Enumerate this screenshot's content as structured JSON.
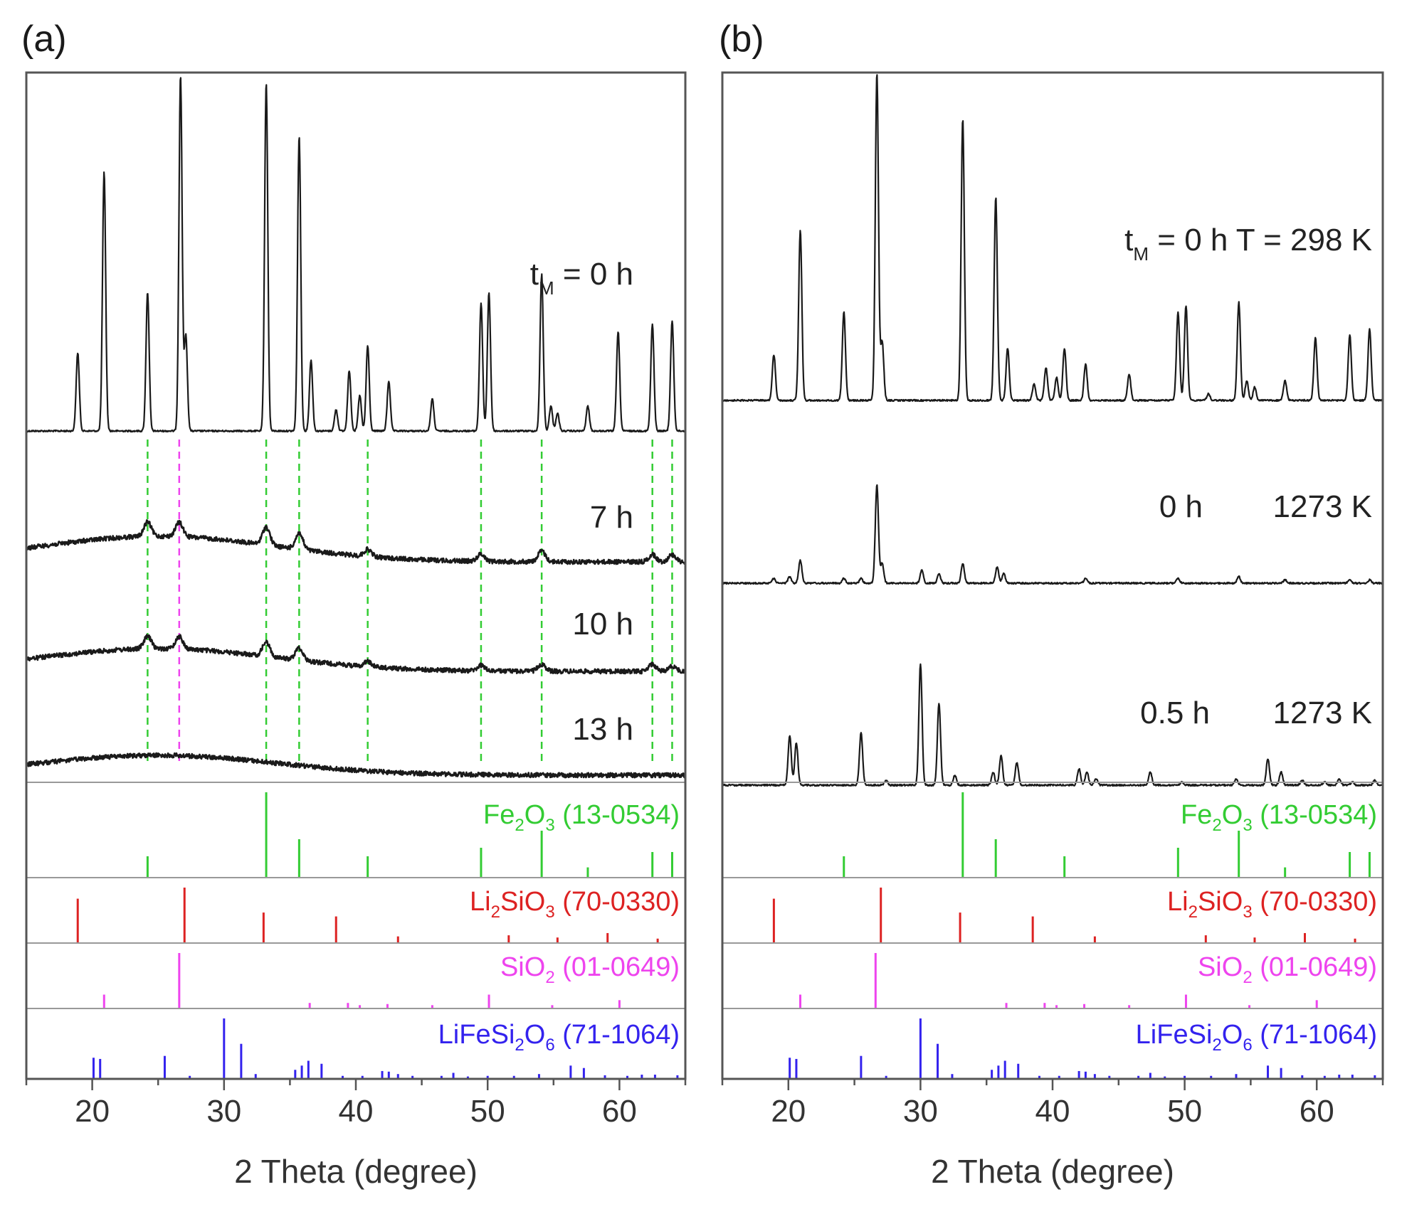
{
  "figure": {
    "panel_letters": [
      "(a)",
      "(b)"
    ],
    "xlabel": "2 Theta (degree)",
    "colors": {
      "pattern": "#1a1a1a",
      "Fe2O3": "#33cc33",
      "Li2SiO3": "#dd2222",
      "SiO2": "#ee44ee",
      "LiFeSi2O6": "#3322ee",
      "frame": "#555555",
      "separator": "#999999"
    }
  },
  "chart_data": [
    {
      "type": "line",
      "panel": "(a)",
      "xlabel": "2 Theta (degree)",
      "xlim": [
        15,
        65
      ],
      "xticks": [
        20,
        30,
        40,
        50,
        60
      ],
      "ylabel": "",
      "series": [
        {
          "name": "",
          "label_text": "t",
          "label_sub": "M",
          "label_rest": " = 0 h",
          "kind": "crystalline",
          "peaks": [
            {
              "x": 18.9,
              "h": 0.22
            },
            {
              "x": 20.9,
              "h": 0.73
            },
            {
              "x": 24.2,
              "h": 0.39
            },
            {
              "x": 26.7,
              "h": 1.0
            },
            {
              "x": 27.1,
              "h": 0.27
            },
            {
              "x": 33.2,
              "h": 0.98
            },
            {
              "x": 35.7,
              "h": 0.83
            },
            {
              "x": 36.6,
              "h": 0.2
            },
            {
              "x": 38.5,
              "h": 0.06
            },
            {
              "x": 39.5,
              "h": 0.17
            },
            {
              "x": 40.3,
              "h": 0.1
            },
            {
              "x": 40.9,
              "h": 0.24
            },
            {
              "x": 42.5,
              "h": 0.14
            },
            {
              "x": 45.8,
              "h": 0.09
            },
            {
              "x": 49.5,
              "h": 0.36
            },
            {
              "x": 50.1,
              "h": 0.39
            },
            {
              "x": 54.1,
              "h": 0.44
            },
            {
              "x": 54.8,
              "h": 0.07
            },
            {
              "x": 55.3,
              "h": 0.05
            },
            {
              "x": 57.6,
              "h": 0.07
            },
            {
              "x": 59.9,
              "h": 0.28
            },
            {
              "x": 62.5,
              "h": 0.3
            },
            {
              "x": 64.0,
              "h": 0.31
            }
          ]
        },
        {
          "name": "",
          "label_text": "7 h",
          "kind": "amorphous",
          "peaks": [
            {
              "x": 24.2,
              "h": 0.04
            },
            {
              "x": 26.6,
              "h": 0.04
            },
            {
              "x": 33.2,
              "h": 0.05
            },
            {
              "x": 35.7,
              "h": 0.045
            },
            {
              "x": 40.9,
              "h": 0.02
            },
            {
              "x": 49.5,
              "h": 0.02
            },
            {
              "x": 54.1,
              "h": 0.03
            },
            {
              "x": 62.5,
              "h": 0.02
            },
            {
              "x": 64.0,
              "h": 0.02
            }
          ]
        },
        {
          "name": "",
          "label_text": "10 h",
          "kind": "amorphous",
          "peaks": [
            {
              "x": 24.2,
              "h": 0.035
            },
            {
              "x": 26.6,
              "h": 0.035
            },
            {
              "x": 33.2,
              "h": 0.04
            },
            {
              "x": 35.7,
              "h": 0.035
            },
            {
              "x": 40.9,
              "h": 0.015
            },
            {
              "x": 49.5,
              "h": 0.015
            },
            {
              "x": 54.1,
              "h": 0.02
            },
            {
              "x": 62.5,
              "h": 0.02
            },
            {
              "x": 64.0,
              "h": 0.015
            }
          ]
        },
        {
          "name": "",
          "label_text": "13 h",
          "kind": "amorphous",
          "peaks": []
        }
      ],
      "guide_lines": {
        "Fe2O3": [
          24.2,
          33.2,
          35.7,
          40.9,
          49.5,
          54.1,
          62.5,
          64.0
        ],
        "SiO2": [
          26.6
        ]
      }
    },
    {
      "type": "line",
      "panel": "(b)",
      "xlabel": "2 Theta (degree)",
      "xlim": [
        15,
        65
      ],
      "xticks": [
        20,
        30,
        40,
        50,
        60
      ],
      "ylabel": "",
      "series": [
        {
          "name": "",
          "label_text": "t",
          "label_sub": "M",
          "label_rest": " = 0 h  T = 298 K",
          "kind": "crystalline",
          "peaks": [
            {
              "x": 18.9,
              "h": 0.14
            },
            {
              "x": 20.9,
              "h": 0.52
            },
            {
              "x": 24.2,
              "h": 0.27
            },
            {
              "x": 26.7,
              "h": 1.0
            },
            {
              "x": 27.1,
              "h": 0.18
            },
            {
              "x": 33.2,
              "h": 0.86
            },
            {
              "x": 35.7,
              "h": 0.62
            },
            {
              "x": 36.6,
              "h": 0.16
            },
            {
              "x": 38.6,
              "h": 0.05
            },
            {
              "x": 39.5,
              "h": 0.1
            },
            {
              "x": 40.3,
              "h": 0.07
            },
            {
              "x": 40.9,
              "h": 0.16
            },
            {
              "x": 42.5,
              "h": 0.11
            },
            {
              "x": 45.8,
              "h": 0.08
            },
            {
              "x": 49.5,
              "h": 0.27
            },
            {
              "x": 50.1,
              "h": 0.29
            },
            {
              "x": 51.8,
              "h": 0.02
            },
            {
              "x": 54.1,
              "h": 0.3
            },
            {
              "x": 54.7,
              "h": 0.06
            },
            {
              "x": 55.3,
              "h": 0.04
            },
            {
              "x": 57.6,
              "h": 0.06
            },
            {
              "x": 59.9,
              "h": 0.19
            },
            {
              "x": 62.5,
              "h": 0.2
            },
            {
              "x": 64.0,
              "h": 0.22
            }
          ]
        },
        {
          "name": "",
          "label_text": "0 h",
          "label_extra": "1273 K",
          "kind": "crystalline",
          "peaks": [
            {
              "x": 18.9,
              "h": 0.015
            },
            {
              "x": 20.1,
              "h": 0.02
            },
            {
              "x": 20.9,
              "h": 0.07
            },
            {
              "x": 24.2,
              "h": 0.015
            },
            {
              "x": 25.5,
              "h": 0.015
            },
            {
              "x": 26.7,
              "h": 0.3
            },
            {
              "x": 27.1,
              "h": 0.06
            },
            {
              "x": 30.1,
              "h": 0.04
            },
            {
              "x": 31.4,
              "h": 0.03
            },
            {
              "x": 33.2,
              "h": 0.06
            },
            {
              "x": 35.8,
              "h": 0.05
            },
            {
              "x": 36.3,
              "h": 0.03
            },
            {
              "x": 42.5,
              "h": 0.015
            },
            {
              "x": 49.5,
              "h": 0.015
            },
            {
              "x": 54.1,
              "h": 0.02
            },
            {
              "x": 57.6,
              "h": 0.01
            },
            {
              "x": 62.5,
              "h": 0.01
            },
            {
              "x": 64.0,
              "h": 0.01
            }
          ]
        },
        {
          "name": "",
          "label_text": "0.5 h",
          "label_extra": "1273 K",
          "kind": "crystalline",
          "peaks": [
            {
              "x": 20.1,
              "h": 0.15
            },
            {
              "x": 20.6,
              "h": 0.13
            },
            {
              "x": 25.5,
              "h": 0.16
            },
            {
              "x": 27.4,
              "h": 0.015
            },
            {
              "x": 30.0,
              "h": 0.37
            },
            {
              "x": 31.4,
              "h": 0.25
            },
            {
              "x": 32.6,
              "h": 0.03
            },
            {
              "x": 35.5,
              "h": 0.04
            },
            {
              "x": 36.1,
              "h": 0.09
            },
            {
              "x": 37.3,
              "h": 0.07
            },
            {
              "x": 42.0,
              "h": 0.05
            },
            {
              "x": 42.6,
              "h": 0.04
            },
            {
              "x": 43.3,
              "h": 0.02
            },
            {
              "x": 47.4,
              "h": 0.04
            },
            {
              "x": 49.8,
              "h": 0.01
            },
            {
              "x": 53.9,
              "h": 0.02
            },
            {
              "x": 56.3,
              "h": 0.08
            },
            {
              "x": 57.3,
              "h": 0.04
            },
            {
              "x": 58.9,
              "h": 0.015
            },
            {
              "x": 60.6,
              "h": 0.01
            },
            {
              "x": 61.7,
              "h": 0.02
            },
            {
              "x": 62.7,
              "h": 0.01
            },
            {
              "x": 64.4,
              "h": 0.015
            }
          ]
        }
      ]
    }
  ],
  "references": [
    {
      "key": "Fe2O3",
      "formula": [
        "Fe",
        "2",
        "O",
        "3",
        ""
      ],
      "code": " (13-0534)",
      "lines": [
        {
          "x": 24.2,
          "h": 0.25
        },
        {
          "x": 33.2,
          "h": 1.0
        },
        {
          "x": 35.7,
          "h": 0.45
        },
        {
          "x": 40.9,
          "h": 0.25
        },
        {
          "x": 49.5,
          "h": 0.35
        },
        {
          "x": 54.1,
          "h": 0.55
        },
        {
          "x": 57.6,
          "h": 0.12
        },
        {
          "x": 62.5,
          "h": 0.3
        },
        {
          "x": 64.0,
          "h": 0.3
        }
      ]
    },
    {
      "key": "Li2SiO3",
      "formula": [
        "Li",
        "2",
        "SiO",
        "3",
        ""
      ],
      "code": " (70-0330)",
      "lines": [
        {
          "x": 18.9,
          "h": 0.8
        },
        {
          "x": 27.0,
          "h": 1.0
        },
        {
          "x": 33.0,
          "h": 0.55
        },
        {
          "x": 38.5,
          "h": 0.48
        },
        {
          "x": 43.2,
          "h": 0.12
        },
        {
          "x": 51.6,
          "h": 0.14
        },
        {
          "x": 55.3,
          "h": 0.1
        },
        {
          "x": 59.1,
          "h": 0.18
        },
        {
          "x": 62.9,
          "h": 0.08
        }
      ]
    },
    {
      "key": "SiO2",
      "formula": [
        "SiO",
        "2",
        "",
        "",
        ""
      ],
      "code": " (01-0649)",
      "lines": [
        {
          "x": 20.9,
          "h": 0.25
        },
        {
          "x": 26.6,
          "h": 1.0
        },
        {
          "x": 36.5,
          "h": 0.1
        },
        {
          "x": 39.4,
          "h": 0.1
        },
        {
          "x": 40.3,
          "h": 0.06
        },
        {
          "x": 42.4,
          "h": 0.08
        },
        {
          "x": 45.8,
          "h": 0.06
        },
        {
          "x": 50.1,
          "h": 0.25
        },
        {
          "x": 54.9,
          "h": 0.06
        },
        {
          "x": 60.0,
          "h": 0.15
        }
      ]
    },
    {
      "key": "LiFeSi2O6",
      "formula": [
        "LiFeSi",
        "2",
        "O",
        "6",
        ""
      ],
      "code": " (71-1064)",
      "lines": [
        {
          "x": 20.1,
          "h": 0.35
        },
        {
          "x": 20.6,
          "h": 0.33
        },
        {
          "x": 25.5,
          "h": 0.38
        },
        {
          "x": 27.4,
          "h": 0.05
        },
        {
          "x": 30.0,
          "h": 1.0
        },
        {
          "x": 31.3,
          "h": 0.58
        },
        {
          "x": 32.4,
          "h": 0.08
        },
        {
          "x": 35.4,
          "h": 0.15
        },
        {
          "x": 35.9,
          "h": 0.22
        },
        {
          "x": 36.4,
          "h": 0.3
        },
        {
          "x": 37.4,
          "h": 0.25
        },
        {
          "x": 39.0,
          "h": 0.05
        },
        {
          "x": 40.5,
          "h": 0.05
        },
        {
          "x": 42.0,
          "h": 0.13
        },
        {
          "x": 42.5,
          "h": 0.12
        },
        {
          "x": 43.2,
          "h": 0.08
        },
        {
          "x": 44.3,
          "h": 0.05
        },
        {
          "x": 46.5,
          "h": 0.05
        },
        {
          "x": 47.4,
          "h": 0.1
        },
        {
          "x": 48.5,
          "h": 0.04
        },
        {
          "x": 50.0,
          "h": 0.05
        },
        {
          "x": 52.0,
          "h": 0.05
        },
        {
          "x": 53.9,
          "h": 0.08
        },
        {
          "x": 56.3,
          "h": 0.22
        },
        {
          "x": 57.3,
          "h": 0.18
        },
        {
          "x": 58.9,
          "h": 0.06
        },
        {
          "x": 60.6,
          "h": 0.05
        },
        {
          "x": 61.7,
          "h": 0.07
        },
        {
          "x": 62.7,
          "h": 0.07
        },
        {
          "x": 64.4,
          "h": 0.06
        }
      ]
    }
  ]
}
